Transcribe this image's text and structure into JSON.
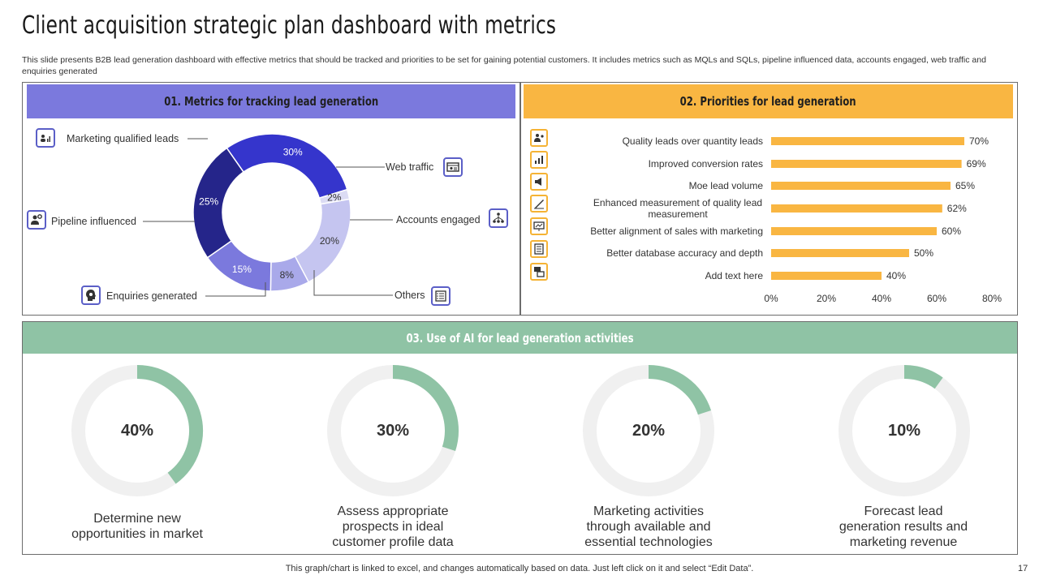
{
  "title": "Client acquisition strategic plan dashboard with metrics",
  "description": "This slide presents B2B lead generation dashboard with effective metrics that should be tracked and priorities to be set for gaining potential customers. It includes metrics such as MQLs and SQLs, pipeline influenced data, accounts engaged, web traffic and enquiries generated",
  "sections": {
    "metrics": {
      "header": "01. Metrics for tracking lead generation",
      "color": "#7b79dd"
    },
    "priorities": {
      "header": "02. Priorities for lead generation",
      "color": "#f9b642"
    },
    "ai": {
      "header": "03. Use of AI for lead generation activities",
      "color": "#8fc3a5"
    }
  },
  "footer": "This graph/chart is linked to excel,  and changes automatically based on data. Just left click on it and select “Edit Data”.",
  "page_number": "17",
  "chart_data": [
    {
      "type": "pie",
      "categories": [
        "Marketing qualified leads",
        "Web traffic",
        "Accounts engaged",
        "Others",
        "Enquiries generated",
        "Pipeline influenced"
      ],
      "values": [
        30,
        2,
        20,
        8,
        15,
        25
      ],
      "labels": [
        "30%",
        "2%",
        "20%",
        "8%",
        "15%",
        "25%"
      ],
      "colors": [
        "#3535cc",
        "#dcdcf4",
        "#c5c5f0",
        "#a9a9ea",
        "#7b79dd",
        "#25258a"
      ],
      "icons": [
        "people-chart-icon",
        "web-icon",
        "network-icon",
        "list-icon",
        "bulb-head-icon",
        "gear-person-icon"
      ]
    },
    {
      "type": "bar",
      "orientation": "horizontal",
      "categories": [
        "Quality leads over quantity leads",
        "Improved conversion rates",
        "Moe lead volume",
        "Enhanced measurement of quality lead measurement",
        "Better alignment of sales with marketing",
        "Better database accuracy and depth",
        "Add text here"
      ],
      "values": [
        70,
        69,
        65,
        62,
        60,
        50,
        40
      ],
      "labels": [
        "70%",
        "69%",
        "65%",
        "62%",
        "60%",
        "50%",
        "40%"
      ],
      "xlim": [
        0,
        80
      ],
      "xticks": [
        "0%",
        "20%",
        "40%",
        "60%",
        "80%"
      ],
      "color": "#f9b642",
      "icons": [
        "users-icon",
        "bar-chart-icon",
        "megaphone-icon",
        "ruler-icon",
        "presentation-icon",
        "database-icon",
        "cards-icon"
      ]
    },
    {
      "type": "pie",
      "style": "progress-rings",
      "items": [
        {
          "value": 40,
          "label": "40%",
          "text": "Determine new opportunities in market"
        },
        {
          "value": 30,
          "label": "30%",
          "text": "Assess appropriate prospects in ideal customer profile data"
        },
        {
          "value": 20,
          "label": "20%",
          "text": "Marketing activities through available and essential technologies"
        },
        {
          "value": 10,
          "label": "10%",
          "text": "Forecast lead generation results and marketing revenue"
        }
      ],
      "fill_color": "#8fc3a5",
      "track_color": "#f0f0f0"
    }
  ]
}
